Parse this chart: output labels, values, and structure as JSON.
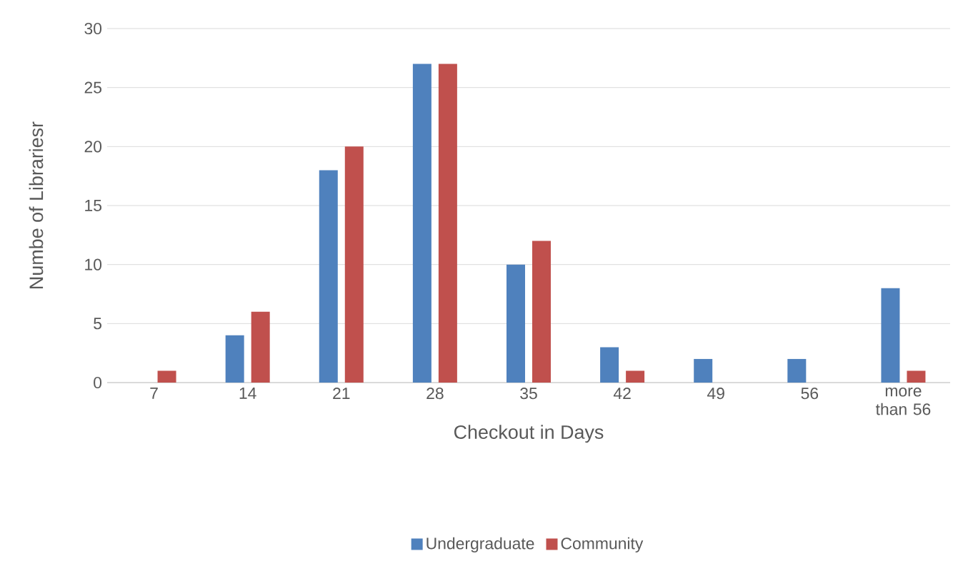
{
  "chart_data": {
    "type": "bar",
    "xlabel": "Checkout in Days",
    "ylabel": "Numbe of Librariesr",
    "categories": [
      "7",
      "14",
      "21",
      "28",
      "35",
      "42",
      "49",
      "56",
      "more than 56"
    ],
    "series": [
      {
        "name": "Undergraduate",
        "color": "#4f81bd",
        "values": [
          0,
          4,
          18,
          27,
          10,
          3,
          2,
          2,
          8
        ]
      },
      {
        "name": "Community",
        "color": "#c0504d",
        "values": [
          1,
          6,
          20,
          27,
          12,
          1,
          0,
          0,
          1
        ]
      }
    ],
    "ylim": [
      0,
      30
    ],
    "yticks": [
      0,
      5,
      10,
      15,
      20,
      25,
      30
    ],
    "grid": "y",
    "legend": "bottom"
  }
}
